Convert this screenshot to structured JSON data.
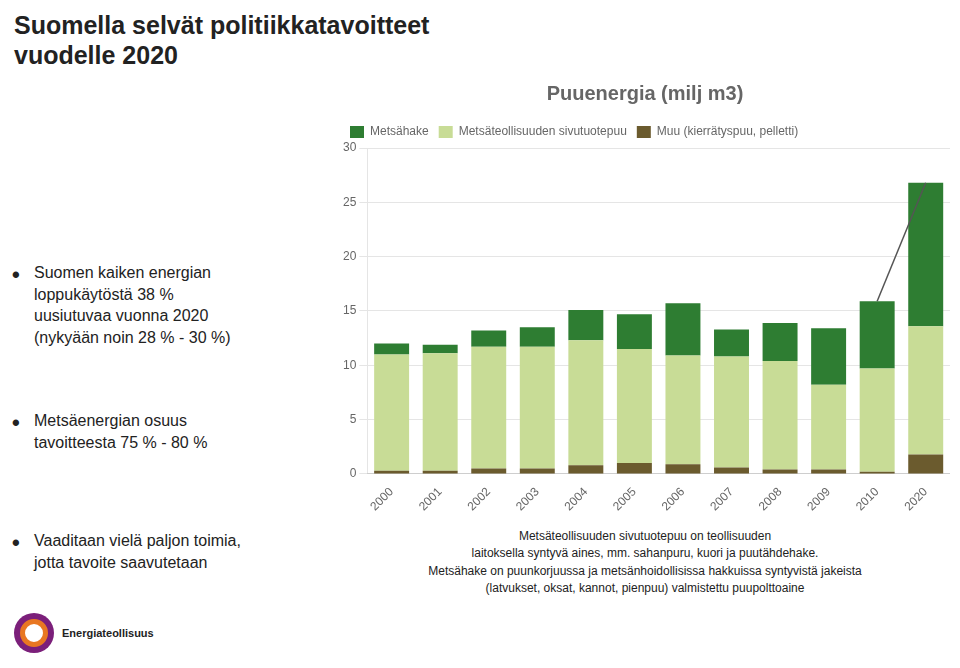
{
  "chart_data": {
    "type": "bar",
    "title": "Puuenergia (milj m3)",
    "categories": [
      "2000",
      "2001",
      "2002",
      "2003",
      "2004",
      "2005",
      "2006",
      "2007",
      "2008",
      "2009",
      "2010",
      "2020"
    ],
    "series": [
      {
        "name": "Muu (kierrätyspuu, pelletti)",
        "color": "#6B5B2E",
        "values": [
          0.3,
          0.3,
          0.5,
          0.5,
          0.8,
          1.0,
          0.9,
          0.6,
          0.4,
          0.4,
          0.2,
          1.8
        ]
      },
      {
        "name": "Metsäteollisuuden sivutuotepuu",
        "color": "#C8DC96",
        "values": [
          10.7,
          10.8,
          11.2,
          11.2,
          11.5,
          10.5,
          10.0,
          10.2,
          10.0,
          7.8,
          9.5,
          11.8
        ]
      },
      {
        "name": "Metsähake",
        "color": "#2E7D32",
        "values": [
          1.0,
          0.8,
          1.5,
          1.8,
          2.8,
          3.2,
          4.8,
          2.5,
          3.5,
          5.2,
          6.2,
          13.2
        ]
      },
      {
        "type": "line",
        "color": "#555555",
        "values": [
          null,
          null,
          null,
          null,
          null,
          null,
          null,
          null,
          null,
          null,
          15.9,
          26.8
        ]
      }
    ],
    "stacked": true,
    "ylim": [
      0,
      30
    ],
    "yticks": [
      0,
      5,
      10,
      15,
      20,
      25,
      30
    ],
    "grid": true,
    "legend": "upper left",
    "annotations": {
      "heading": "Suomella selvät politiikkatavoitteet\nvuodelle 2020",
      "bullets": [
        "Suomen kaiken energian\nloppukäytöstä 38 %\nuusiutuvaa vuonna 2020\n(nykyään noin 28 % - 30 %)",
        "Metsäenergian osuus\ntavoitteesta 75 % - 80 %",
        "Vaaditaan vielä paljon toimia,\njotta tavoite saavutetaan"
      ],
      "notes": [
        "Metsäteollisuuden sivutuotepuu on teollisuuden",
        "laitoksella syntyvä aines, mm. sahanpuru, kuori ja puutähdehake.",
        "Metsähake on puunkorjuussa ja metsänhoidollisissa hakkuissa syntyvistä jakeista",
        "(latvukset, oksat, kannot, pienpuu) valmistettu puupolttoaine"
      ],
      "logo": "Energiateollisuus"
    }
  }
}
